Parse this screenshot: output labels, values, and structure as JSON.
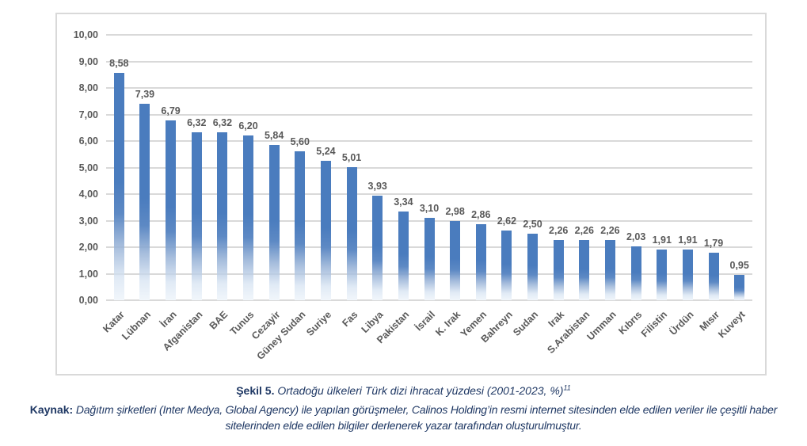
{
  "chart_data": {
    "type": "bar",
    "title": "",
    "xlabel": "",
    "ylabel": "",
    "categories": [
      "Katar",
      "Lübnan",
      "İran",
      "Afganistan",
      "BAE",
      "Tunus",
      "Cezayir",
      "Güney Sudan",
      "Suriye",
      "Fas",
      "Libya",
      "Pakistan",
      "İsrail",
      "K. Irak",
      "Yemen",
      "Bahreyn",
      "Sudan",
      "Irak",
      "S.Arabistan",
      "Umman",
      "Kıbrıs",
      "Filistin",
      "Ürdün",
      "Mısır",
      "Kuveyt"
    ],
    "values": [
      8.58,
      7.39,
      6.79,
      6.32,
      6.32,
      6.2,
      5.84,
      5.6,
      5.24,
      5.01,
      3.93,
      3.34,
      3.1,
      2.98,
      2.86,
      2.62,
      2.5,
      2.26,
      2.26,
      2.26,
      2.03,
      1.91,
      1.91,
      1.79,
      0.95
    ],
    "value_labels": [
      "8,58",
      "7,39",
      "6,79",
      "6,32",
      "6,32",
      "6,20",
      "5,84",
      "5,60",
      "5,24",
      "5,01",
      "3,93",
      "3,34",
      "3,10",
      "2,98",
      "2,86",
      "2,62",
      "2,50",
      "2,26",
      "2,26",
      "2,26",
      "2,03",
      "1,91",
      "1,91",
      "1,79",
      "0,95"
    ],
    "y_tick_labels": [
      "0,00",
      "1,00",
      "2,00",
      "3,00",
      "4,00",
      "5,00",
      "6,00",
      "7,00",
      "8,00",
      "9,00",
      "10,00"
    ],
    "ylim": [
      0,
      10
    ],
    "y_step": 1,
    "grid": true,
    "legend": "none",
    "bar_color_top": "#4a7cbe",
    "bar_color_mid": "#5d89c4",
    "bar_color_fade": "#f1f6fb",
    "gridline_color": "#d9d9d9",
    "axis_label_color": "#595959"
  },
  "caption": {
    "prefix": "Şekil 5.",
    "text": " Ortadoğu ülkeleri Türk dizi ihracat yüzdesi (2001-2023, %)",
    "superscript": "11"
  },
  "source": {
    "prefix": "Kaynak:",
    "text": " Dağıtım şirketleri (Inter Medya, Global Agency) ile yapılan görüşmeler, Calinos Holding’in resmi internet sitesinden elde edilen veriler ile çeşitli haber sitelerinden elde edilen bilgiler derlenerek yazar tarafından oluşturulmuştur."
  }
}
